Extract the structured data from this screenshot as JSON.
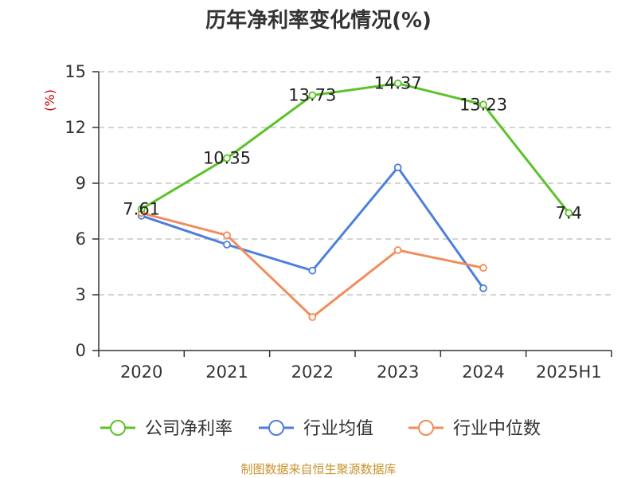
{
  "chart_data": {
    "type": "line",
    "title": "历年净利率变化情况(%)",
    "ylabel": "(%)",
    "xlabel": "",
    "categories": [
      "2020",
      "2021",
      "2022",
      "2023",
      "2024",
      "2025H1"
    ],
    "ylim": [
      0,
      15
    ],
    "yticks": [
      0,
      3,
      6,
      9,
      12,
      15
    ],
    "grid": "horizontal dashed",
    "legend_position": "bottom",
    "series": [
      {
        "name": "公司净利率",
        "color": "#5cc22a",
        "values": [
          7.61,
          10.35,
          13.73,
          14.37,
          13.23,
          7.4
        ],
        "labels": [
          "7.61",
          "10.35",
          "13.73",
          "14.37",
          "13.23",
          "7.4"
        ],
        "show_labels": true
      },
      {
        "name": "行业均值",
        "color": "#4e7fdc",
        "values": [
          7.25,
          5.7,
          4.3,
          9.85,
          3.35,
          null
        ],
        "show_labels": false
      },
      {
        "name": "行业中位数",
        "color": "#f28c5a",
        "values": [
          7.4,
          6.2,
          1.8,
          5.4,
          4.45,
          null
        ],
        "show_labels": false
      }
    ],
    "source": "制图数据来自恒生聚源数据库"
  },
  "colors": {
    "title": "#333333",
    "ylabel": "#cc0000",
    "axis": "#333333",
    "grid": "#bbbbbb",
    "source": "#c8922e"
  }
}
